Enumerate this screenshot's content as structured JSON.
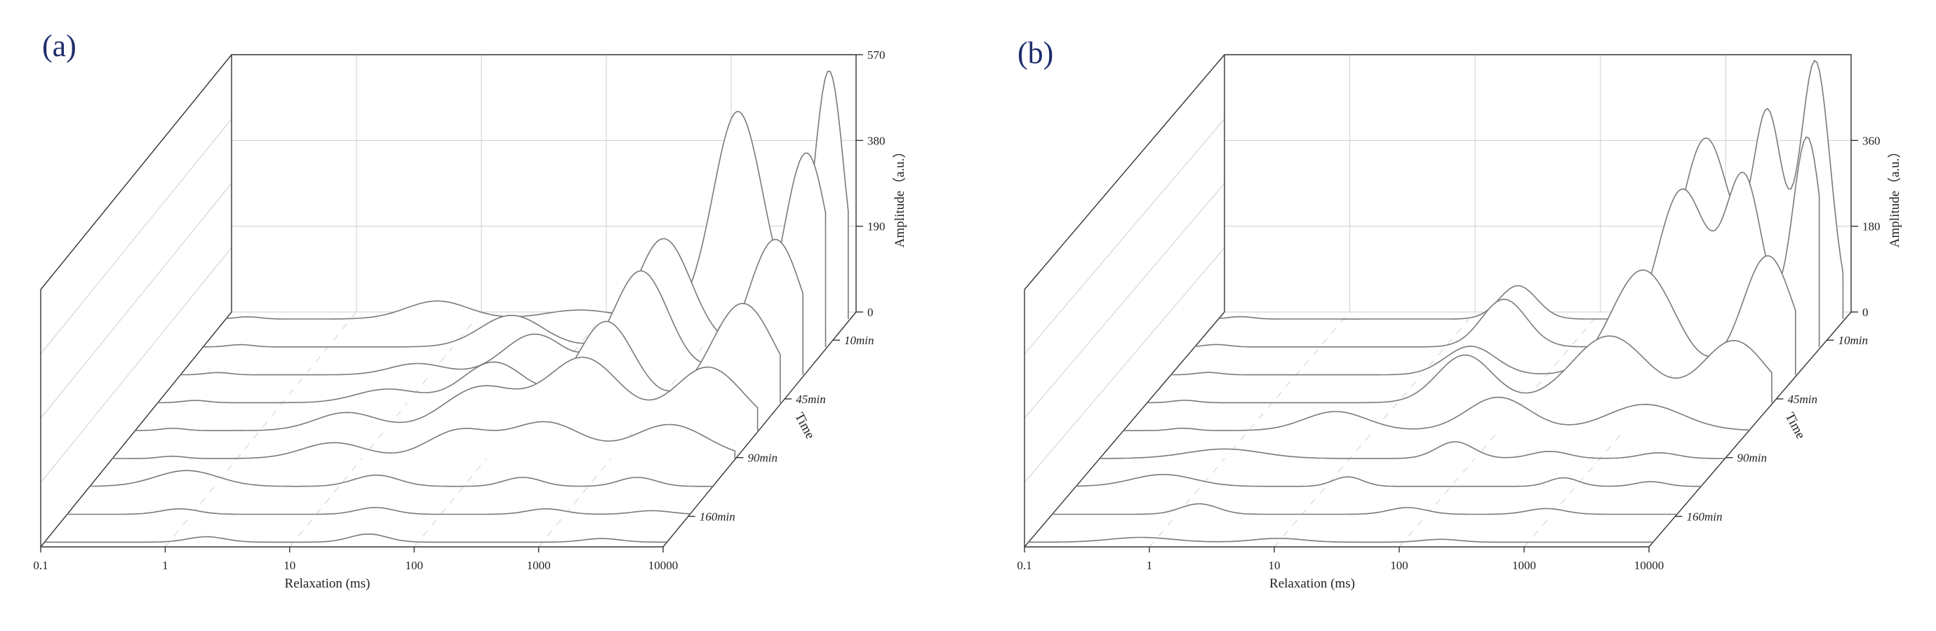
{
  "chart_data": [
    {
      "type": "line",
      "panel_label": "(a)",
      "xlabel": "Relaxation (ms)",
      "zlabel": "Amplitude（a.u.）",
      "ylabel": "Time",
      "x_scale": "log",
      "x_ticks": [
        "0.1",
        "1",
        "10",
        "100",
        "1000",
        "10000"
      ],
      "z_ticks": [
        "0",
        "190",
        "380",
        "570"
      ],
      "z_range": [
        0,
        570
      ],
      "time_labels": [
        "10min",
        "45min",
        "90min",
        "160min"
      ],
      "series": [
        {
          "peaks": [
            [
              0.15,
              0.1,
              5
            ],
            [
              5,
              0.25,
              40
            ],
            [
              70,
              0.28,
              20
            ],
            [
              1300,
              0.2,
              460
            ],
            [
              7000,
              0.12,
              550
            ],
            [
              40000,
              0.2,
              45
            ]
          ]
        },
        {
          "peaks": [
            [
              0.2,
              0.1,
              5
            ],
            [
              30,
              0.25,
              70
            ],
            [
              500,
              0.22,
              240
            ],
            [
              7000,
              0.18,
              430
            ],
            [
              70000,
              0.12,
              30
            ]
          ]
        },
        {
          "peaks": [
            [
              0.2,
              0.1,
              5
            ],
            [
              8,
              0.22,
              25
            ],
            [
              70,
              0.25,
              90
            ],
            [
              500,
              0.22,
              230
            ],
            [
              6000,
              0.22,
              300
            ],
            [
              60000,
              0.15,
              20
            ]
          ]
        },
        {
          "peaks": [
            [
              0.2,
              0.1,
              5
            ],
            [
              7,
              0.25,
              30
            ],
            [
              50,
              0.25,
              90
            ],
            [
              400,
              0.22,
              180
            ],
            [
              5000,
              0.25,
              220
            ],
            [
              50000,
              0.15,
              12
            ]
          ]
        },
        {
          "peaks": [
            [
              0.2,
              0.1,
              5
            ],
            [
              5,
              0.25,
              40
            ],
            [
              60,
              0.3,
              95
            ],
            [
              400,
              0.3,
              160
            ],
            [
              4000,
              0.28,
              140
            ]
          ]
        },
        {
          "peaks": [
            [
              0.3,
              0.1,
              5
            ],
            [
              6,
              0.25,
              35
            ],
            [
              60,
              0.25,
              60
            ],
            [
              300,
              0.3,
              80
            ],
            [
              3000,
              0.3,
              75
            ],
            [
              30000,
              0.2,
              10
            ]
          ]
        },
        {
          "peaks": [
            [
              0.6,
              0.25,
              35
            ],
            [
              20,
              0.18,
              25
            ],
            [
              300,
              0.15,
              20
            ],
            [
              2500,
              0.15,
              20
            ],
            [
              30000,
              0.15,
              8
            ]
          ]
        },
        {
          "peaks": [
            [
              0.8,
              0.15,
              12
            ],
            [
              30,
              0.15,
              15
            ],
            [
              700,
              0.15,
              12
            ],
            [
              5000,
              0.15,
              8
            ]
          ]
        },
        {
          "peaks": [
            [
              2,
              0.15,
              12
            ],
            [
              40,
              0.15,
              18
            ],
            [
              3000,
              0.15,
              8
            ]
          ]
        }
      ]
    },
    {
      "type": "line",
      "panel_label": "(b)",
      "xlabel": "Relaxation (ms)",
      "zlabel": "Amplitude（a.u.）",
      "ylabel": "Time",
      "x_scale": "log",
      "x_ticks": [
        "0.1",
        "1",
        "10",
        "100",
        "1000",
        "10000"
      ],
      "z_ticks": [
        "0",
        "180",
        "360"
      ],
      "z_range": [
        0,
        540
      ],
      "time_labels": [
        "10min",
        "45min",
        "90min",
        "160min"
      ],
      "series": [
        {
          "peaks": [
            [
              0.15,
              0.1,
              5
            ],
            [
              25,
              0.15,
              70
            ],
            [
              800,
              0.2,
              380
            ],
            [
              2500,
              0.12,
              420
            ],
            [
              6000,
              0.12,
              540
            ],
            [
              30000,
              0.15,
              30
            ]
          ]
        },
        {
          "peaks": [
            [
              0.15,
              0.1,
              5
            ],
            [
              30,
              0.18,
              100
            ],
            [
              800,
              0.2,
              330
            ],
            [
              2500,
              0.15,
              350
            ],
            [
              8000,
              0.12,
              440
            ],
            [
              40000,
              0.15,
              40
            ]
          ]
        },
        {
          "peaks": [
            [
              0.2,
              0.1,
              5
            ],
            [
              25,
              0.2,
              60
            ],
            [
              600,
              0.25,
              220
            ],
            [
              6000,
              0.2,
              250
            ],
            [
              50000,
              0.15,
              20
            ]
          ]
        },
        {
          "peaks": [
            [
              0.2,
              0.1,
              5
            ],
            [
              35,
              0.22,
              100
            ],
            [
              500,
              0.3,
              140
            ],
            [
              5000,
              0.25,
              130
            ]
          ]
        },
        {
          "peaks": [
            [
              0.3,
              0.1,
              5
            ],
            [
              5,
              0.25,
              40
            ],
            [
              100,
              0.25,
              70
            ],
            [
              1500,
              0.3,
              55
            ]
          ]
        },
        {
          "peaks": [
            [
              1,
              0.3,
              20
            ],
            [
              70,
              0.15,
              35
            ],
            [
              400,
              0.15,
              15
            ],
            [
              3000,
              0.15,
              12
            ]
          ]
        },
        {
          "peaks": [
            [
              0.5,
              0.25,
              25
            ],
            [
              15,
              0.12,
              20
            ],
            [
              800,
              0.12,
              18
            ],
            [
              4000,
              0.12,
              10
            ]
          ]
        },
        {
          "peaks": [
            [
              1.5,
              0.15,
              22
            ],
            [
              70,
              0.15,
              14
            ],
            [
              900,
              0.15,
              12
            ]
          ]
        },
        {
          "peaks": [
            [
              0.8,
              0.25,
              10
            ],
            [
              10,
              0.2,
              8
            ],
            [
              200,
              0.15,
              6
            ]
          ]
        }
      ]
    }
  ]
}
